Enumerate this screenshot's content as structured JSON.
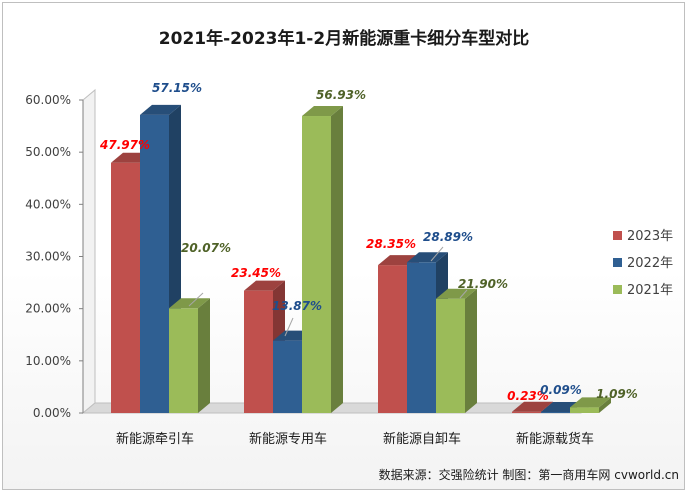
{
  "chart_data": {
    "type": "bar",
    "title": "2021年-2023年1-2月新能源重卡细分车型对比",
    "categories": [
      "新能源牵引车",
      "新能源专用车",
      "新能源自卸车",
      "新能源载货车"
    ],
    "series": [
      {
        "name": "2023年",
        "color": "#c0504d",
        "label_color": "#ff0000",
        "values": [
          47.97,
          23.45,
          28.35,
          0.23
        ]
      },
      {
        "name": "2022年",
        "color": "#2f5f92",
        "label_color": "#1f4e8c",
        "values": [
          57.15,
          13.87,
          28.89,
          0.09
        ]
      },
      {
        "name": "2021年",
        "color": "#9bbb59",
        "label_color": "#4f6228",
        "values": [
          20.07,
          56.93,
          21.9,
          1.09
        ]
      }
    ],
    "data_labels": [
      [
        "47.97%",
        "23.45%",
        "28.35%",
        "0.23%"
      ],
      [
        "57.15%",
        "13.87%",
        "28.89%",
        "0.09%"
      ],
      [
        "20.07%",
        "56.93%",
        "21.90%",
        "1.09%"
      ]
    ],
    "y_ticks": [
      "0.00%",
      "10.00%",
      "20.00%",
      "30.00%",
      "40.00%",
      "50.00%",
      "60.00%"
    ],
    "ylim": [
      0,
      60
    ],
    "legend_position": "right",
    "grid": false,
    "source": "数据来源：交强险统计  制图：第一商用车网 cvworld.cn"
  }
}
